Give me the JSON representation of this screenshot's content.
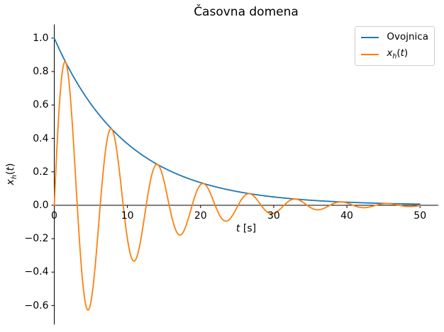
{
  "chart_data": {
    "type": "line",
    "title": "Časovna domena",
    "xlabel": {
      "text": "t [s]",
      "var": "t",
      "rest": " [s]"
    },
    "ylabel": {
      "text": "x_h(t)",
      "base": "x",
      "sub": "h",
      "open": "(",
      "var": "t",
      "close": ")"
    },
    "xlim": [
      0,
      52.5
    ],
    "ylim": [
      -0.714,
      1.082
    ],
    "grid": false,
    "background": "#ffffff",
    "axis_color": "#000000",
    "xticks": [
      {
        "value": 0,
        "label": "0"
      },
      {
        "value": 10,
        "label": "10"
      },
      {
        "value": 20,
        "label": "20"
      },
      {
        "value": 30,
        "label": "30"
      },
      {
        "value": 40,
        "label": "40"
      },
      {
        "value": 50,
        "label": "50"
      }
    ],
    "yticks": [
      {
        "value": 1.0,
        "label": "1.0"
      },
      {
        "value": 0.8,
        "label": "0.8"
      },
      {
        "value": 0.6,
        "label": "0.6"
      },
      {
        "value": 0.4,
        "label": "0.4"
      },
      {
        "value": 0.2,
        "label": "0.2"
      },
      {
        "value": 0.0,
        "label": "0.0"
      },
      {
        "value": -0.2,
        "label": "−0.2"
      },
      {
        "value": -0.4,
        "label": "−0.4"
      },
      {
        "value": -0.6,
        "label": "−0.6"
      }
    ],
    "legend": {
      "position": "upper right",
      "entries": [
        {
          "label": "Ovojnica",
          "color": "#1f77b4"
        },
        {
          "label": "x_h(t)",
          "color": "#ff7f0e",
          "math": {
            "base": "x",
            "sub": "h",
            "open": "(",
            "var": "t",
            "close": ")"
          }
        }
      ]
    },
    "series": [
      {
        "id": "envelope",
        "name": "Ovojnica",
        "color": "#1f77b4",
        "fn": "exp_decay",
        "amp": 1,
        "tau": 10,
        "t_range": [
          0,
          50
        ],
        "step": 0.1,
        "formula": "exp(-t/10)"
      },
      {
        "id": "signal",
        "name": "x_h(t)",
        "color": "#ff7f0e",
        "fn": "damped_sine",
        "amp": 1,
        "tau": 10,
        "omega": 1,
        "t_range": [
          0,
          50
        ],
        "step": 0.1,
        "formula": "exp(-t/10)*sin(t)"
      }
    ]
  }
}
